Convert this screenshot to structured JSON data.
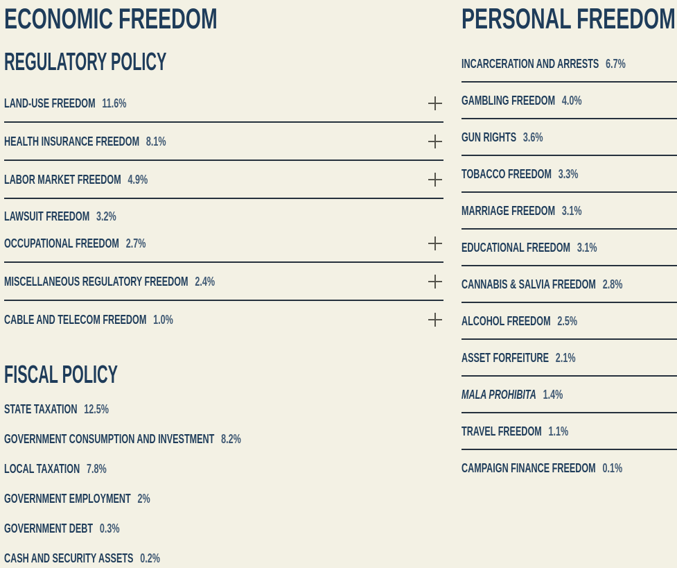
{
  "page": {
    "background": "#f3f1e4",
    "heading_color": "#1e3c5a",
    "value_color": "#3e5873",
    "divider_color": "#25313d",
    "plus_icon_color": "#55544c"
  },
  "economic": {
    "title": "ECONOMIC FREEDOM",
    "sections": [
      {
        "title": "REGULATORY POLICY",
        "style": "accordion",
        "items": [
          {
            "label": "LAND-USE FREEDOM",
            "value": "11.6%",
            "expandable": true,
            "divider": true
          },
          {
            "label": "HEALTH INSURANCE FREEDOM",
            "value": "8.1%",
            "expandable": true,
            "divider": true
          },
          {
            "label": "LABOR MARKET FREEDOM",
            "value": "4.9%",
            "expandable": true,
            "divider": true
          },
          {
            "label": "LAWSUIT FREEDOM",
            "value": "3.2%",
            "expandable": false,
            "divider": false,
            "compact": true
          },
          {
            "label": "OCCUPATIONAL FREEDOM",
            "value": "2.7%",
            "expandable": true,
            "divider": true
          },
          {
            "label": "MISCELLANEOUS REGULATORY FREEDOM",
            "value": "2.4%",
            "expandable": true,
            "divider": true
          },
          {
            "label": "CABLE AND TELECOM FREEDOM",
            "value": "1.0%",
            "expandable": true,
            "divider": false
          }
        ]
      },
      {
        "title": "FISCAL POLICY",
        "style": "plain",
        "items": [
          {
            "label": "STATE TAXATION",
            "value": "12.5%"
          },
          {
            "label": "GOVERNMENT CONSUMPTION AND INVESTMENT",
            "value": "8.2%"
          },
          {
            "label": "LOCAL TAXATION",
            "value": "7.8%"
          },
          {
            "label": "GOVERNMENT EMPLOYMENT",
            "value": "2%"
          },
          {
            "label": "GOVERNMENT DEBT",
            "value": "0.3%"
          },
          {
            "label": "CASH AND SECURITY ASSETS",
            "value": "0.2%"
          }
        ]
      }
    ]
  },
  "personal": {
    "title": "PERSONAL FREEDOM",
    "items": [
      {
        "label": "INCARCERATION AND ARRESTS",
        "value": "6.7%",
        "divider": true
      },
      {
        "label": "GAMBLING FREEDOM",
        "value": "4.0%",
        "divider": true
      },
      {
        "label": "GUN RIGHTS",
        "value": "3.6%",
        "divider": true
      },
      {
        "label": "TOBACCO FREEDOM",
        "value": "3.3%",
        "divider": true
      },
      {
        "label": "MARRIAGE FREEDOM",
        "value": "3.1%",
        "divider": true
      },
      {
        "label": "EDUCATIONAL FREEDOM",
        "value": "3.1%",
        "divider": true
      },
      {
        "label": "CANNABIS & SALVIA FREEDOM",
        "value": "2.8%",
        "divider": true
      },
      {
        "label": "ALCOHOL FREEDOM",
        "value": "2.5%",
        "divider": true
      },
      {
        "label": "ASSET FORFEITURE",
        "value": "2.1%",
        "divider": true
      },
      {
        "label": "MALA PROHIBITA",
        "value": "1.4%",
        "italic": true,
        "divider": true
      },
      {
        "label": "TRAVEL FREEDOM",
        "value": "1.1%",
        "divider": true
      },
      {
        "label": "CAMPAIGN FINANCE FREEDOM",
        "value": "0.1%",
        "divider": false
      }
    ]
  },
  "icons": {
    "expand": "plus-icon"
  }
}
